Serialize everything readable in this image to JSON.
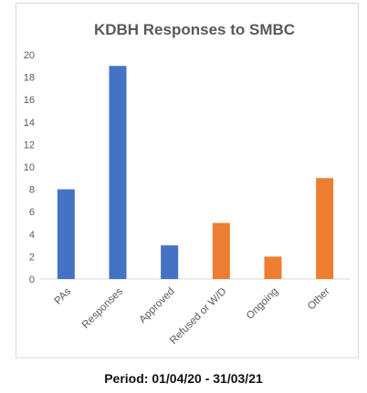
{
  "chart_data": {
    "type": "bar",
    "title": "KDBH Responses to SMBC",
    "categories": [
      "PAs",
      "Responses",
      "Approved",
      "Refused or W/D",
      "Ongoing",
      "Other"
    ],
    "values": [
      8,
      19,
      3,
      5,
      2,
      9
    ],
    "bar_colors": [
      "#4472c4",
      "#4472c4",
      "#4472c4",
      "#ed7d31",
      "#ed7d31",
      "#ed7d31"
    ],
    "ylim": [
      0,
      20
    ],
    "yticks": [
      0,
      2,
      4,
      6,
      8,
      10,
      12,
      14,
      16,
      18,
      20
    ],
    "grid": false,
    "xlabel": "",
    "ylabel": ""
  },
  "caption": "Period: 01/04/20 - 31/03/21"
}
